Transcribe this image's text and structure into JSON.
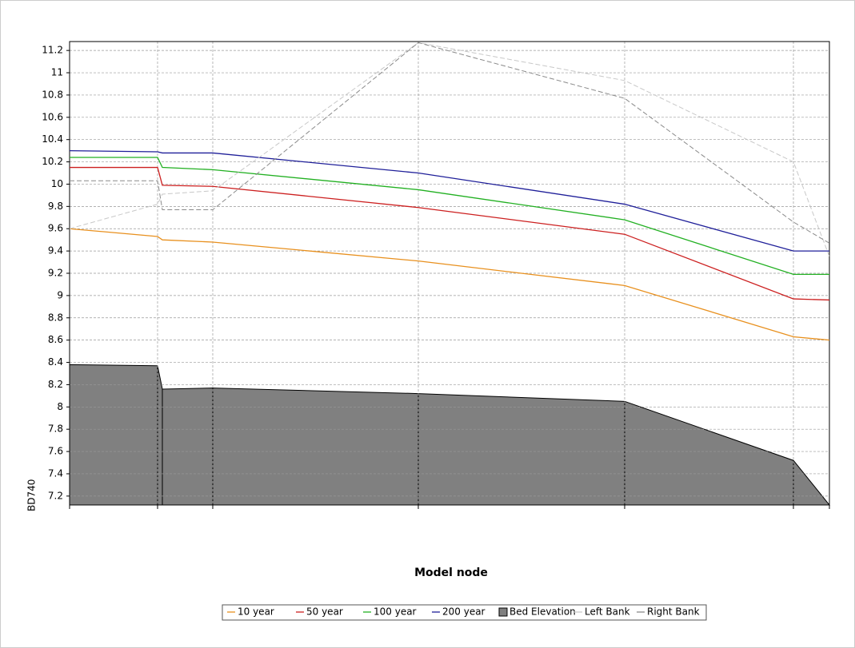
{
  "chart_data": {
    "type": "line",
    "x_label": "Model node",
    "y_label": "BD740",
    "x": [
      0,
      110,
      116,
      179,
      436,
      694,
      905,
      950
    ],
    "xlim": [
      0,
      950
    ],
    "xticks": [
      0,
      110,
      179,
      436,
      694,
      905,
      950
    ],
    "ylim": [
      7.12,
      11.28
    ],
    "yticks": [
      7.2,
      7.4,
      7.6,
      7.8,
      8,
      8.2,
      8.4,
      8.6,
      8.8,
      9,
      9.2,
      9.4,
      9.6,
      9.8,
      10,
      10.2,
      10.4,
      10.6,
      10.8,
      11,
      11.2
    ],
    "grid": true,
    "series": [
      {
        "name": "10 year",
        "color": "#e8901e",
        "values": [
          9.6,
          9.53,
          9.5,
          9.48,
          9.31,
          9.09,
          8.63,
          8.6
        ]
      },
      {
        "name": "50 year",
        "color": "#cc1f1f",
        "values": [
          10.15,
          10.15,
          9.99,
          9.98,
          9.79,
          9.55,
          8.97,
          8.96
        ]
      },
      {
        "name": "100 year",
        "color": "#22b022",
        "values": [
          10.24,
          10.24,
          10.15,
          10.13,
          9.95,
          9.68,
          9.19,
          9.19
        ]
      },
      {
        "name": "200 year",
        "color": "#1f1f99",
        "values": [
          10.3,
          10.29,
          10.28,
          10.28,
          10.1,
          9.82,
          9.4,
          9.4
        ]
      },
      {
        "name": "Bed Elevation",
        "color": "#808080",
        "kind": "area",
        "values": [
          8.38,
          8.37,
          8.16,
          8.17,
          8.12,
          8.05,
          7.52,
          7.12
        ]
      },
      {
        "name": "Left Bank",
        "color": "#c8c8c8",
        "kind": "dashed",
        "values": [
          9.6,
          9.82,
          9.91,
          9.94,
          11.27,
          10.93,
          10.2,
          9.35
        ]
      },
      {
        "name": "Right Bank",
        "color": "#8a8a8a",
        "kind": "dashed",
        "values": [
          10.03,
          10.03,
          9.77,
          9.77,
          11.27,
          10.77,
          9.66,
          9.47
        ]
      }
    ]
  }
}
